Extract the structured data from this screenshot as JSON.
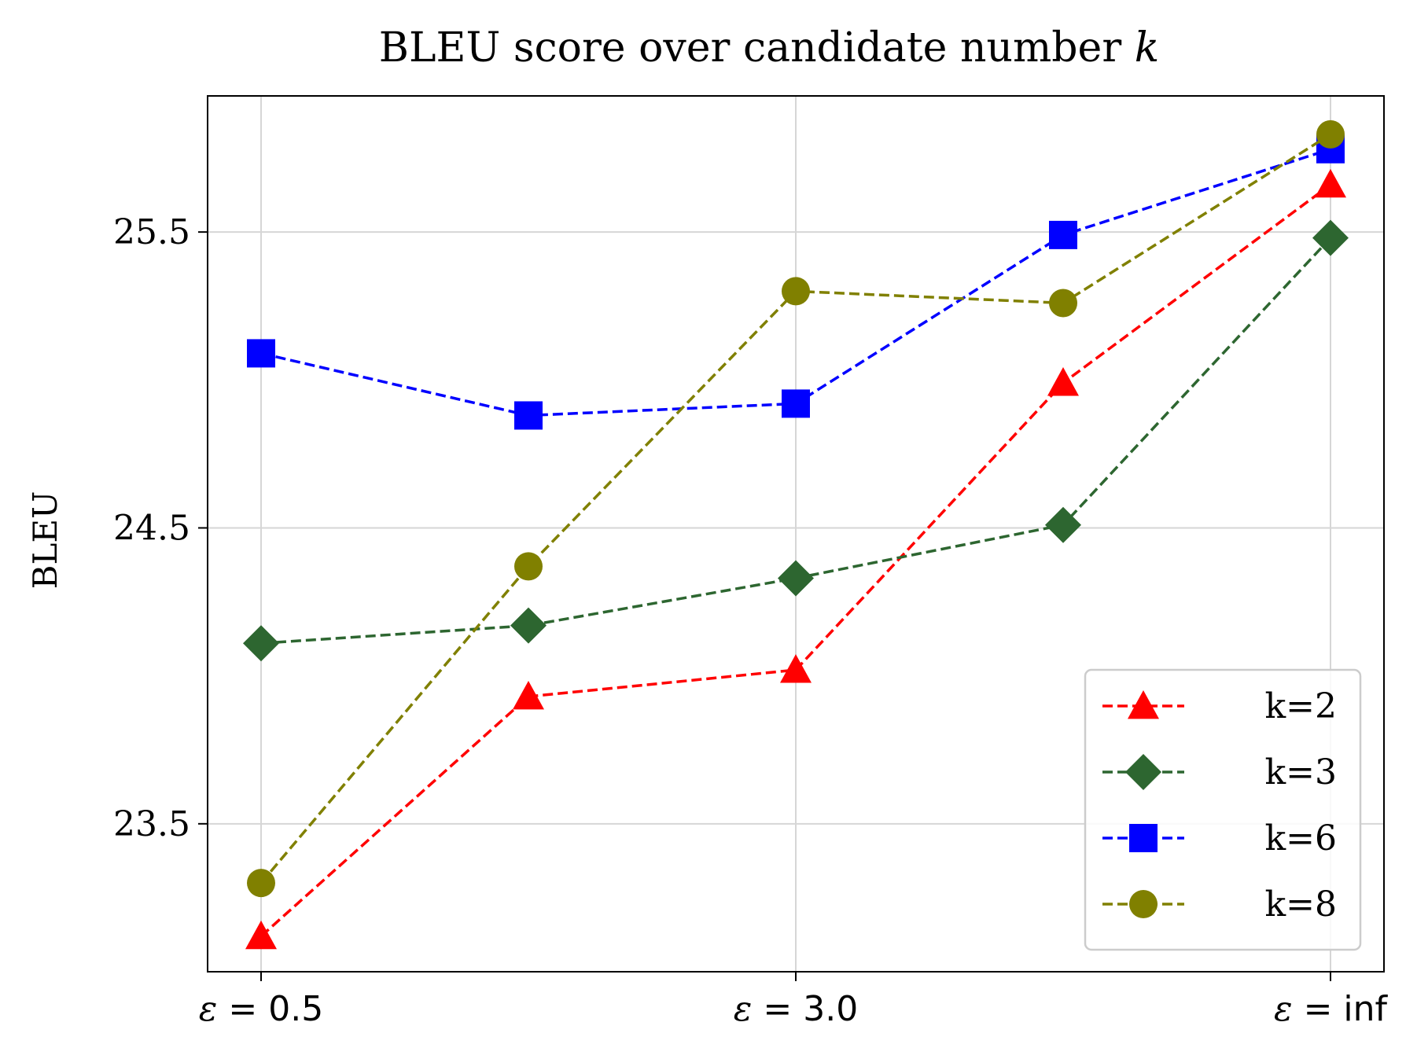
{
  "chart_data": {
    "type": "line",
    "title_main": "BLEU score over candidate number",
    "title_var": "k",
    "xlabel": "",
    "ylabel": "BLEU",
    "x": [
      0,
      1,
      2,
      3,
      4
    ],
    "x_ticks": [
      {
        "x": 0,
        "greek": "ε",
        "value": "0.5"
      },
      {
        "x": 2,
        "greek": "ε",
        "value": "3.0"
      },
      {
        "x": 4,
        "greek": "ε",
        "value": "inf"
      }
    ],
    "y_ticks": [
      "23.5",
      "24.5",
      "25.5"
    ],
    "ylim": [
      23.0,
      25.96
    ],
    "xlim": [
      -0.2,
      4.2
    ],
    "grid": true,
    "legend_position": "lower-right",
    "series": [
      {
        "name": "k=2",
        "color": "#ff0000",
        "marker": "triangle",
        "values": [
          23.12,
          23.93,
          24.02,
          24.99,
          25.66
        ]
      },
      {
        "name": "k=3",
        "color": "#2d6630",
        "marker": "diamond",
        "values": [
          24.11,
          24.17,
          24.33,
          24.51,
          25.48
        ]
      },
      {
        "name": "k=6",
        "color": "#0000ff",
        "marker": "square",
        "values": [
          25.09,
          24.88,
          24.92,
          25.49,
          25.78
        ]
      },
      {
        "name": "k=8",
        "color": "#808000",
        "marker": "circle",
        "values": [
          23.3,
          24.37,
          25.3,
          25.26,
          25.83
        ]
      }
    ]
  }
}
